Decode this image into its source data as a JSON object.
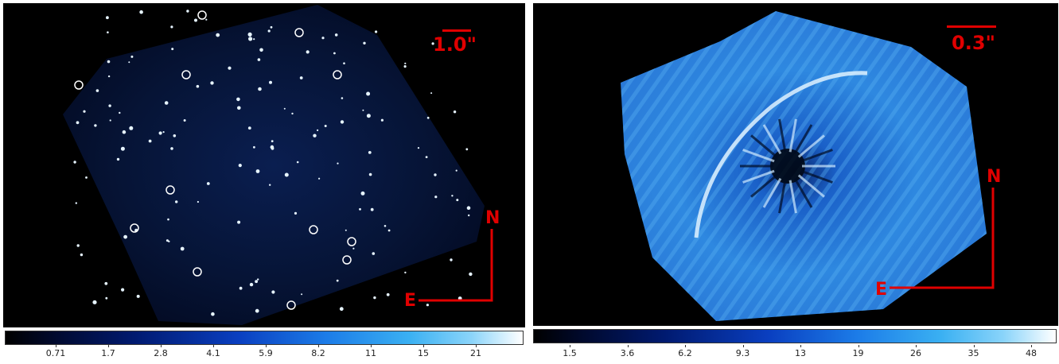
{
  "panels": [
    {
      "scale_label": "1.0\"",
      "north_label": "N",
      "east_label": "E",
      "colorbar_ticks": [
        "0.71",
        "1.7",
        "2.8",
        "4.1",
        "5.9",
        "8.2",
        "11",
        "15",
        "21"
      ]
    },
    {
      "scale_label": "0.3\"",
      "north_label": "N",
      "east_label": "E",
      "colorbar_ticks": [
        "1.5",
        "3.6",
        "6.2",
        "9.3",
        "13",
        "19",
        "26",
        "35",
        "48"
      ]
    }
  ],
  "colors": {
    "annotation": "#e00000",
    "colormap_low": "#000000",
    "colormap_mid": "#1c7ce8",
    "colormap_high": "#ffffff"
  }
}
